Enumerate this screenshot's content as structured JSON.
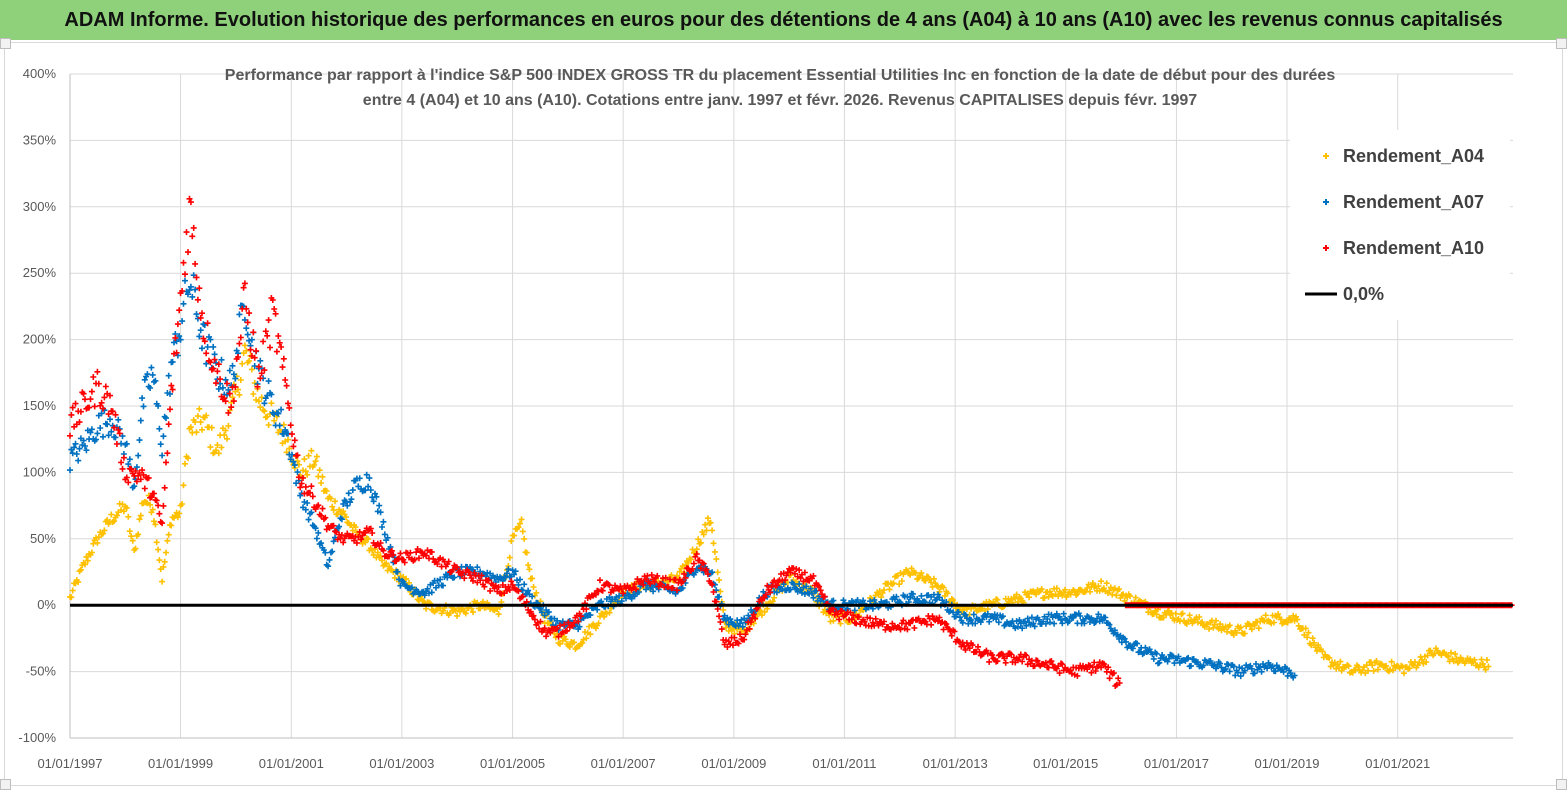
{
  "banner": {
    "title": "ADAM Informe. Evolution historique des performances en euros pour des détentions de 4 ans (A04) à 10 ans (A10) avec les revenus connus capitalisés"
  },
  "colors": {
    "banner_bg": "#8fd07a",
    "A04": "#ffc000",
    "A07": "#0070c0",
    "A10": "#ff0000",
    "zero_line": "#000000",
    "grid": "#d9d9d9"
  },
  "chart_data": {
    "type": "scatter",
    "title": "Performance par rapport à l'indice S&P 500 INDEX GROSS TR  du placement Essential Utilities Inc en fonction de la date de début pour des durées",
    "subtitle": "entre 4 (A04) et 10 ans (A10). Cotations entre janv. 1997 et févr. 2026. Revenus CAPITALISES depuis févr. 1997",
    "xlabel": "",
    "ylabel": "",
    "x_range": [
      "1997-01-01",
      "2023-02-01"
    ],
    "x_ticks": [
      "01/01/1997",
      "01/01/1999",
      "01/01/2001",
      "01/01/2003",
      "01/01/2005",
      "01/01/2007",
      "01/01/2009",
      "01/01/2011",
      "01/01/2013",
      "01/01/2015",
      "01/01/2017",
      "01/01/2019",
      "01/01/2021"
    ],
    "ylim": [
      -100,
      400
    ],
    "y_ticks": [
      "400%",
      "350%",
      "300%",
      "250%",
      "200%",
      "150%",
      "100%",
      "50%",
      "0%",
      "-50%",
      "-100%"
    ],
    "grid": true,
    "legend_position": "top-right",
    "legend": [
      "Rendement_A04",
      "Rendement_A07",
      "Rendement_A10",
      "0,0%"
    ],
    "series": [
      {
        "name": "Rendement_A04",
        "marker": "+",
        "points": [
          [
            "1997-01-01",
            5
          ],
          [
            "1997-04-01",
            30
          ],
          [
            "1997-07-01",
            50
          ],
          [
            "1997-10-01",
            65
          ],
          [
            "1998-01-01",
            75
          ],
          [
            "1998-03-01",
            40
          ],
          [
            "1998-05-01",
            80
          ],
          [
            "1998-07-01",
            75
          ],
          [
            "1998-09-01",
            20
          ],
          [
            "1998-11-01",
            65
          ],
          [
            "1999-01-01",
            70
          ],
          [
            "1999-03-01",
            130
          ],
          [
            "1999-06-01",
            140
          ],
          [
            "1999-09-01",
            115
          ],
          [
            "1999-12-01",
            145
          ],
          [
            "2000-03-01",
            190
          ],
          [
            "2000-06-01",
            155
          ],
          [
            "2000-09-01",
            140
          ],
          [
            "2000-12-01",
            125
          ],
          [
            "2001-03-01",
            100
          ],
          [
            "2001-06-01",
            110
          ],
          [
            "2001-09-01",
            80
          ],
          [
            "2001-12-01",
            70
          ],
          [
            "2002-03-01",
            55
          ],
          [
            "2002-06-01",
            45
          ],
          [
            "2002-09-01",
            30
          ],
          [
            "2003-01-01",
            20
          ],
          [
            "2003-06-01",
            0
          ],
          [
            "2004-01-01",
            -5
          ],
          [
            "2004-06-01",
            0
          ],
          [
            "2004-10-01",
            -5
          ],
          [
            "2005-01-01",
            50
          ],
          [
            "2005-03-01",
            60
          ],
          [
            "2005-05-01",
            20
          ],
          [
            "2005-08-01",
            -10
          ],
          [
            "2005-11-01",
            -25
          ],
          [
            "2006-03-01",
            -30
          ],
          [
            "2006-08-01",
            -10
          ],
          [
            "2007-01-01",
            10
          ],
          [
            "2007-06-01",
            15
          ],
          [
            "2008-01-01",
            20
          ],
          [
            "2008-05-01",
            45
          ],
          [
            "2008-08-01",
            65
          ],
          [
            "2008-11-01",
            -15
          ],
          [
            "2009-03-01",
            -20
          ],
          [
            "2009-08-01",
            0
          ],
          [
            "2010-01-01",
            20
          ],
          [
            "2010-06-01",
            10
          ],
          [
            "2010-10-01",
            -10
          ],
          [
            "2011-03-01",
            -10
          ],
          [
            "2011-09-01",
            10
          ],
          [
            "2012-03-01",
            25
          ],
          [
            "2012-09-01",
            15
          ],
          [
            "2013-03-01",
            -5
          ],
          [
            "2013-09-01",
            0
          ],
          [
            "2014-03-01",
            5
          ],
          [
            "2014-09-01",
            10
          ],
          [
            "2015-03-01",
            10
          ],
          [
            "2015-09-01",
            15
          ],
          [
            "2016-03-01",
            5
          ],
          [
            "2016-09-01",
            -5
          ],
          [
            "2017-03-01",
            -10
          ],
          [
            "2017-09-01",
            -15
          ],
          [
            "2018-03-01",
            -20
          ],
          [
            "2018-09-01",
            -10
          ],
          [
            "2019-03-01",
            -10
          ],
          [
            "2019-09-01",
            -40
          ],
          [
            "2020-03-01",
            -50
          ],
          [
            "2020-09-01",
            -45
          ],
          [
            "2021-03-01",
            -48
          ],
          [
            "2021-09-01",
            -35
          ],
          [
            "2022-03-01",
            -42
          ],
          [
            "2022-09-01",
            -45
          ]
        ]
      },
      {
        "name": "Rendement_A07",
        "marker": "+",
        "points": [
          [
            "1997-01-01",
            110
          ],
          [
            "1997-04-01",
            120
          ],
          [
            "1997-07-01",
            135
          ],
          [
            "1997-10-01",
            140
          ],
          [
            "1998-01-01",
            120
          ],
          [
            "1998-03-01",
            90
          ],
          [
            "1998-05-01",
            155
          ],
          [
            "1998-07-01",
            175
          ],
          [
            "1998-09-01",
            120
          ],
          [
            "1998-11-01",
            180
          ],
          [
            "1999-01-01",
            210
          ],
          [
            "1999-03-01",
            245
          ],
          [
            "1999-06-01",
            200
          ],
          [
            "1999-09-01",
            175
          ],
          [
            "1999-12-01",
            165
          ],
          [
            "2000-03-01",
            230
          ],
          [
            "2000-06-01",
            175
          ],
          [
            "2000-09-01",
            150
          ],
          [
            "2000-12-01",
            130
          ],
          [
            "2001-03-01",
            85
          ],
          [
            "2001-06-01",
            60
          ],
          [
            "2001-09-01",
            30
          ],
          [
            "2001-12-01",
            70
          ],
          [
            "2002-03-01",
            90
          ],
          [
            "2002-06-01",
            95
          ],
          [
            "2002-09-01",
            60
          ],
          [
            "2003-01-01",
            15
          ],
          [
            "2003-06-01",
            10
          ],
          [
            "2004-01-01",
            25
          ],
          [
            "2004-06-01",
            25
          ],
          [
            "2004-10-01",
            20
          ],
          [
            "2005-01-01",
            25
          ],
          [
            "2005-03-01",
            15
          ],
          [
            "2005-05-01",
            5
          ],
          [
            "2005-08-01",
            -5
          ],
          [
            "2005-11-01",
            -15
          ],
          [
            "2006-03-01",
            -15
          ],
          [
            "2006-08-01",
            0
          ],
          [
            "2007-01-01",
            5
          ],
          [
            "2007-06-01",
            15
          ],
          [
            "2008-01-01",
            10
          ],
          [
            "2008-05-01",
            30
          ],
          [
            "2008-08-01",
            25
          ],
          [
            "2008-11-01",
            -10
          ],
          [
            "2009-03-01",
            -15
          ],
          [
            "2009-08-01",
            10
          ],
          [
            "2010-01-01",
            15
          ],
          [
            "2010-06-01",
            10
          ],
          [
            "2010-10-01",
            0
          ],
          [
            "2011-03-01",
            0
          ],
          [
            "2011-09-01",
            0
          ],
          [
            "2012-03-01",
            5
          ],
          [
            "2012-09-01",
            5
          ],
          [
            "2013-03-01",
            -10
          ],
          [
            "2013-09-01",
            -10
          ],
          [
            "2014-03-01",
            -15
          ],
          [
            "2014-09-01",
            -10
          ],
          [
            "2015-03-01",
            -10
          ],
          [
            "2015-09-01",
            -10
          ],
          [
            "2016-03-01",
            -30
          ],
          [
            "2016-09-01",
            -40
          ],
          [
            "2017-03-01",
            -42
          ],
          [
            "2017-09-01",
            -45
          ],
          [
            "2018-03-01",
            -50
          ],
          [
            "2018-09-01",
            -45
          ],
          [
            "2019-03-01",
            -52
          ]
        ]
      },
      {
        "name": "Rendement_A10",
        "marker": "+",
        "points": [
          [
            "1997-01-01",
            135
          ],
          [
            "1997-04-01",
            150
          ],
          [
            "1997-07-01",
            165
          ],
          [
            "1997-10-01",
            150
          ],
          [
            "1998-01-01",
            100
          ],
          [
            "1998-03-01",
            100
          ],
          [
            "1998-05-01",
            95
          ],
          [
            "1998-07-01",
            85
          ],
          [
            "1998-09-01",
            60
          ],
          [
            "1998-11-01",
            160
          ],
          [
            "1999-01-01",
            230
          ],
          [
            "1999-03-01",
            300
          ],
          [
            "1999-06-01",
            210
          ],
          [
            "1999-09-01",
            175
          ],
          [
            "1999-12-01",
            150
          ],
          [
            "2000-03-01",
            230
          ],
          [
            "2000-06-01",
            170
          ],
          [
            "2000-09-01",
            220
          ],
          [
            "2000-12-01",
            160
          ],
          [
            "2001-03-01",
            95
          ],
          [
            "2001-06-01",
            80
          ],
          [
            "2001-09-01",
            60
          ],
          [
            "2001-12-01",
            50
          ],
          [
            "2002-03-01",
            50
          ],
          [
            "2002-06-01",
            55
          ],
          [
            "2002-09-01",
            40
          ],
          [
            "2003-01-01",
            35
          ],
          [
            "2003-06-01",
            40
          ],
          [
            "2004-01-01",
            25
          ],
          [
            "2004-06-01",
            20
          ],
          [
            "2004-10-01",
            10
          ],
          [
            "2005-01-01",
            15
          ],
          [
            "2005-03-01",
            5
          ],
          [
            "2005-05-01",
            -5
          ],
          [
            "2005-08-01",
            -20
          ],
          [
            "2005-11-01",
            -20
          ],
          [
            "2006-03-01",
            -10
          ],
          [
            "2006-08-01",
            15
          ],
          [
            "2007-01-01",
            10
          ],
          [
            "2007-06-01",
            20
          ],
          [
            "2008-01-01",
            15
          ],
          [
            "2008-05-01",
            35
          ],
          [
            "2008-08-01",
            20
          ],
          [
            "2008-11-01",
            -30
          ],
          [
            "2009-03-01",
            -25
          ],
          [
            "2009-08-01",
            10
          ],
          [
            "2010-01-01",
            25
          ],
          [
            "2010-06-01",
            20
          ],
          [
            "2010-10-01",
            -5
          ],
          [
            "2011-03-01",
            -10
          ],
          [
            "2011-09-01",
            -15
          ],
          [
            "2012-03-01",
            -15
          ],
          [
            "2012-09-01",
            -10
          ],
          [
            "2013-03-01",
            -30
          ],
          [
            "2013-09-01",
            -40
          ],
          [
            "2014-03-01",
            -40
          ],
          [
            "2014-09-01",
            -45
          ],
          [
            "2015-03-01",
            -50
          ],
          [
            "2015-09-01",
            -45
          ],
          [
            "2016-01-01",
            -62
          ]
        ]
      },
      {
        "name": "Rendement_A10",
        "note": "flat segment at 0",
        "marker": "+",
        "points": [
          [
            "2016-02-01",
            0
          ],
          [
            "2023-02-01",
            0
          ]
        ]
      }
    ],
    "reference_line": {
      "name": "0,0%",
      "y": 0
    }
  }
}
